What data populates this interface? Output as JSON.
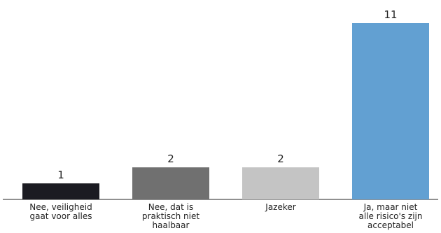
{
  "chart_data": {
    "type": "bar",
    "title": "",
    "xlabel": "",
    "ylabel": "",
    "categories": [
      [
        "Nee, veiligheid",
        "gaat voor alles"
      ],
      [
        "Nee, dat is",
        "praktisch niet",
        "haalbaar"
      ],
      [
        "Jazeker"
      ],
      [
        "Ja, maar niet",
        "alle risico's zijn",
        "acceptabel"
      ]
    ],
    "values": [
      1,
      2,
      2,
      11
    ],
    "colors": [
      "#1b1b22",
      "#707070",
      "#c4c4c4",
      "#62a0d2"
    ],
    "ylim": [
      0,
      11
    ],
    "grid": false,
    "legend": "none"
  }
}
